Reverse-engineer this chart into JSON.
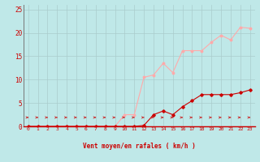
{
  "x": [
    0,
    1,
    2,
    3,
    4,
    5,
    6,
    7,
    8,
    9,
    10,
    11,
    12,
    13,
    14,
    15,
    16,
    17,
    18,
    19,
    20,
    21,
    22,
    23
  ],
  "rafales": [
    0.0,
    0.0,
    0.0,
    0.0,
    0.0,
    0.0,
    0.0,
    0.0,
    0.0,
    0.0,
    2.5,
    2.5,
    10.5,
    11.0,
    13.5,
    11.5,
    16.2,
    16.2,
    16.2,
    18.0,
    19.5,
    18.5,
    21.2,
    21.0
  ],
  "moyen": [
    0.0,
    0.0,
    0.0,
    0.0,
    0.0,
    0.0,
    0.0,
    0.0,
    0.0,
    0.0,
    0.0,
    0.0,
    0.2,
    2.5,
    3.3,
    2.5,
    4.2,
    5.5,
    6.8,
    6.8,
    6.8,
    6.8,
    7.2,
    7.8
  ],
  "color_rafales": "#ffaaaa",
  "color_moyen": "#cc0000",
  "color_arrows": "#cc0000",
  "bg_color": "#bfe8e8",
  "grid_color": "#aacccc",
  "axis_color": "#cc0000",
  "xlabel": "Vent moyen/en rafales ( km/h )",
  "ylim": [
    0,
    26
  ],
  "xlim": [
    -0.5,
    23.5
  ],
  "yticks": [
    0,
    5,
    10,
    15,
    20,
    25
  ],
  "xticks": [
    0,
    1,
    2,
    3,
    4,
    5,
    6,
    7,
    8,
    9,
    10,
    11,
    12,
    13,
    14,
    15,
    16,
    17,
    18,
    19,
    20,
    21,
    22,
    23
  ]
}
